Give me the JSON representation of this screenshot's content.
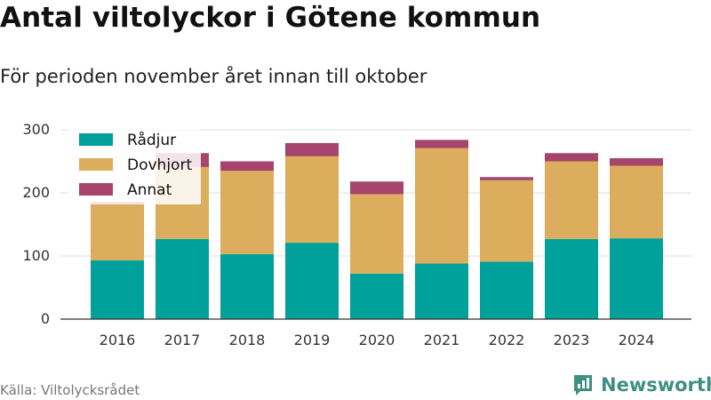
{
  "title": "Antal viltolyckor i Götene kommun",
  "subtitle": "För perioden november året innan till oktober",
  "source": "Källa: Viltolycksrådet",
  "brand": "Newsworthy",
  "brand_color": "#3f8f83",
  "chart_data": {
    "type": "bar",
    "stacked": true,
    "categories": [
      "2016",
      "2017",
      "2018",
      "2019",
      "2020",
      "2021",
      "2022",
      "2023",
      "2024"
    ],
    "series": [
      {
        "name": "Rådjur",
        "color": "#00a19a",
        "values": [
          93,
          127,
          103,
          121,
          72,
          88,
          91,
          127,
          128
        ]
      },
      {
        "name": "Dovhjort",
        "color": "#dbad5c",
        "values": [
          89,
          114,
          132,
          137,
          126,
          183,
          129,
          123,
          115
        ]
      },
      {
        "name": "Annat",
        "color": "#a6446b",
        "values": [
          4,
          22,
          15,
          21,
          20,
          13,
          5,
          13,
          12
        ]
      }
    ],
    "ylim": [
      0,
      300
    ],
    "yticks": [
      0,
      100,
      200,
      300
    ],
    "grid": true,
    "legend": "top-left"
  }
}
